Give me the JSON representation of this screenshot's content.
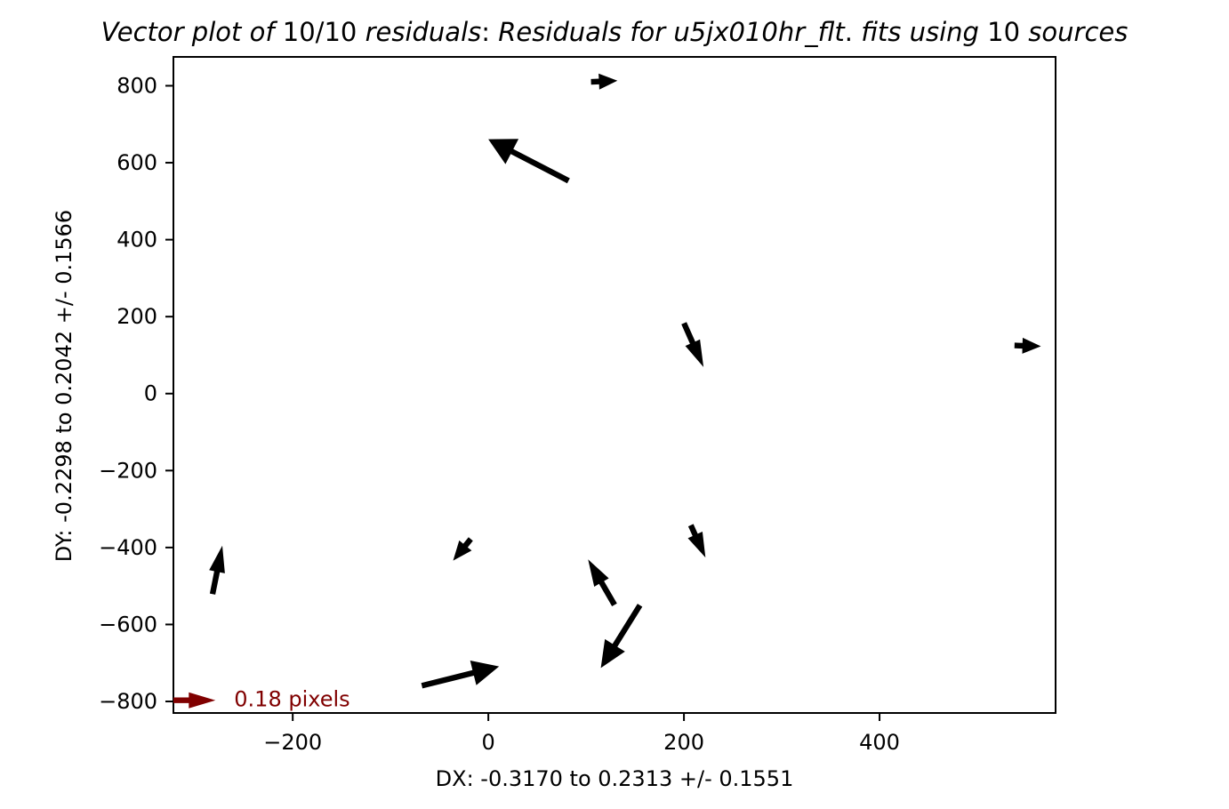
{
  "chart_data": {
    "type": "vector",
    "title_parts": [
      {
        "text": "Vector plot of ",
        "italic": true
      },
      {
        "text": "10/10",
        "italic": false
      },
      {
        "text": " residuals",
        "italic": true
      },
      {
        "text": ":  ",
        "italic": false
      },
      {
        "text": "Residuals for u5jx010hr_flt",
        "italic": true
      },
      {
        "text": ". ",
        "italic": false
      },
      {
        "text": "fits using ",
        "italic": true
      },
      {
        "text": "10",
        "italic": false
      },
      {
        "text": " sources",
        "italic": true
      }
    ],
    "xlabel": "DX: -0.3170 to 0.2313 +/- 0.1551",
    "ylabel": "DY: -0.2298 to 0.2042 +/- 0.1566",
    "xlim": [
      -322,
      580
    ],
    "ylim": [
      -830,
      875
    ],
    "xticks": [
      -200,
      0,
      200,
      400
    ],
    "yticks": [
      -800,
      -600,
      -400,
      -200,
      0,
      200,
      400,
      600,
      800
    ],
    "xtick_labels": [
      "−200",
      "0",
      "200",
      "400"
    ],
    "ytick_labels": [
      "−800",
      "−600",
      "−400",
      "−200",
      "0",
      "200",
      "400",
      "600",
      "800"
    ],
    "grid": false,
    "arrow_color": "#000000",
    "vectors": [
      {
        "x": 82,
        "y": 553,
        "u": -82,
        "v": 108
      },
      {
        "x": 105,
        "y": 810,
        "u": 27,
        "v": 3
      },
      {
        "x": 200,
        "y": 183,
        "u": 20,
        "v": -114
      },
      {
        "x": 538,
        "y": 125,
        "u": 27,
        "v": -2
      },
      {
        "x": -282,
        "y": -521,
        "u": 10,
        "v": 126
      },
      {
        "x": -18,
        "y": -378,
        "u": -18,
        "v": -56
      },
      {
        "x": 207,
        "y": -342,
        "u": 15,
        "v": -84
      },
      {
        "x": 129,
        "y": -549,
        "u": -27,
        "v": 118
      },
      {
        "x": 155,
        "y": -550,
        "u": -40,
        "v": -163
      },
      {
        "x": -68,
        "y": -759,
        "u": 79,
        "v": 50
      }
    ],
    "key": {
      "label": "0.18 pixels",
      "x": -322,
      "y": -797,
      "u": 43,
      "v": 0,
      "color": "#800000"
    }
  }
}
